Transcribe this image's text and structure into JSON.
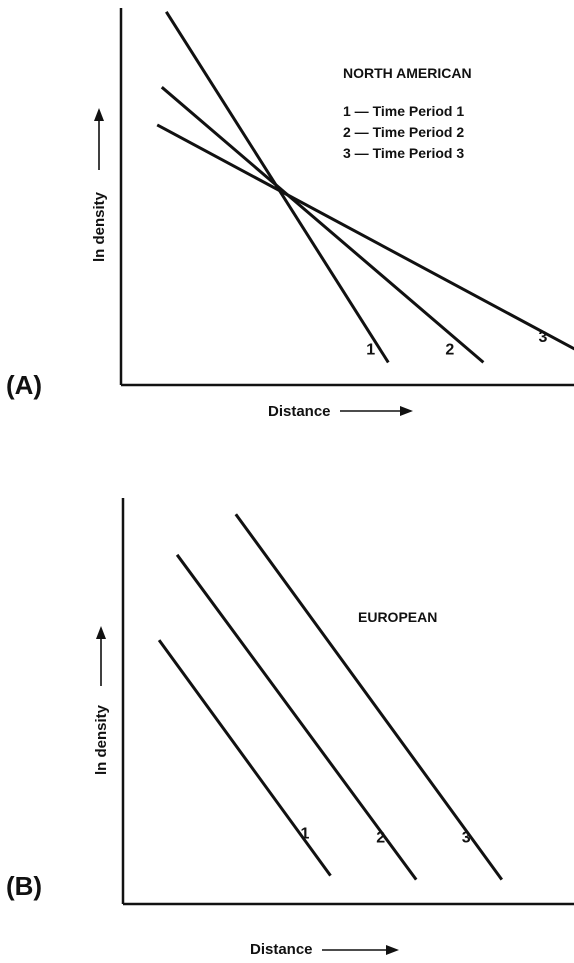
{
  "chart_data": [
    {
      "type": "line",
      "panel_label": "(A)",
      "title": "NORTH AMERICAN",
      "xlabel": "Distance",
      "ylabel": "ln density",
      "legend": [
        "1 — Time Period 1",
        "2 — Time Period 2",
        "3 — Time Period 3"
      ],
      "legend_position": "top-right",
      "grid": false,
      "xlim": [
        0,
        10
      ],
      "ylim": [
        0,
        10
      ],
      "series": [
        {
          "name": "1",
          "x": [
            1.0,
            5.9
          ],
          "y": [
            9.9,
            0.6
          ]
        },
        {
          "name": "2",
          "x": [
            0.9,
            8.0
          ],
          "y": [
            7.9,
            0.6
          ]
        },
        {
          "name": "3",
          "x": [
            0.8,
            10.1
          ],
          "y": [
            6.9,
            0.9
          ]
        }
      ]
    },
    {
      "type": "line",
      "panel_label": "(B)",
      "title": "EUROPEAN",
      "xlabel": "Distance",
      "ylabel": "ln density",
      "grid": false,
      "xlim": [
        0,
        10
      ],
      "ylim": [
        0,
        10
      ],
      "series": [
        {
          "name": "1",
          "x": [
            0.8,
            4.6
          ],
          "y": [
            6.5,
            0.7
          ]
        },
        {
          "name": "2",
          "x": [
            1.2,
            6.5
          ],
          "y": [
            8.6,
            0.6
          ]
        },
        {
          "name": "3",
          "x": [
            2.5,
            8.4
          ],
          "y": [
            9.6,
            0.6
          ]
        }
      ]
    }
  ]
}
